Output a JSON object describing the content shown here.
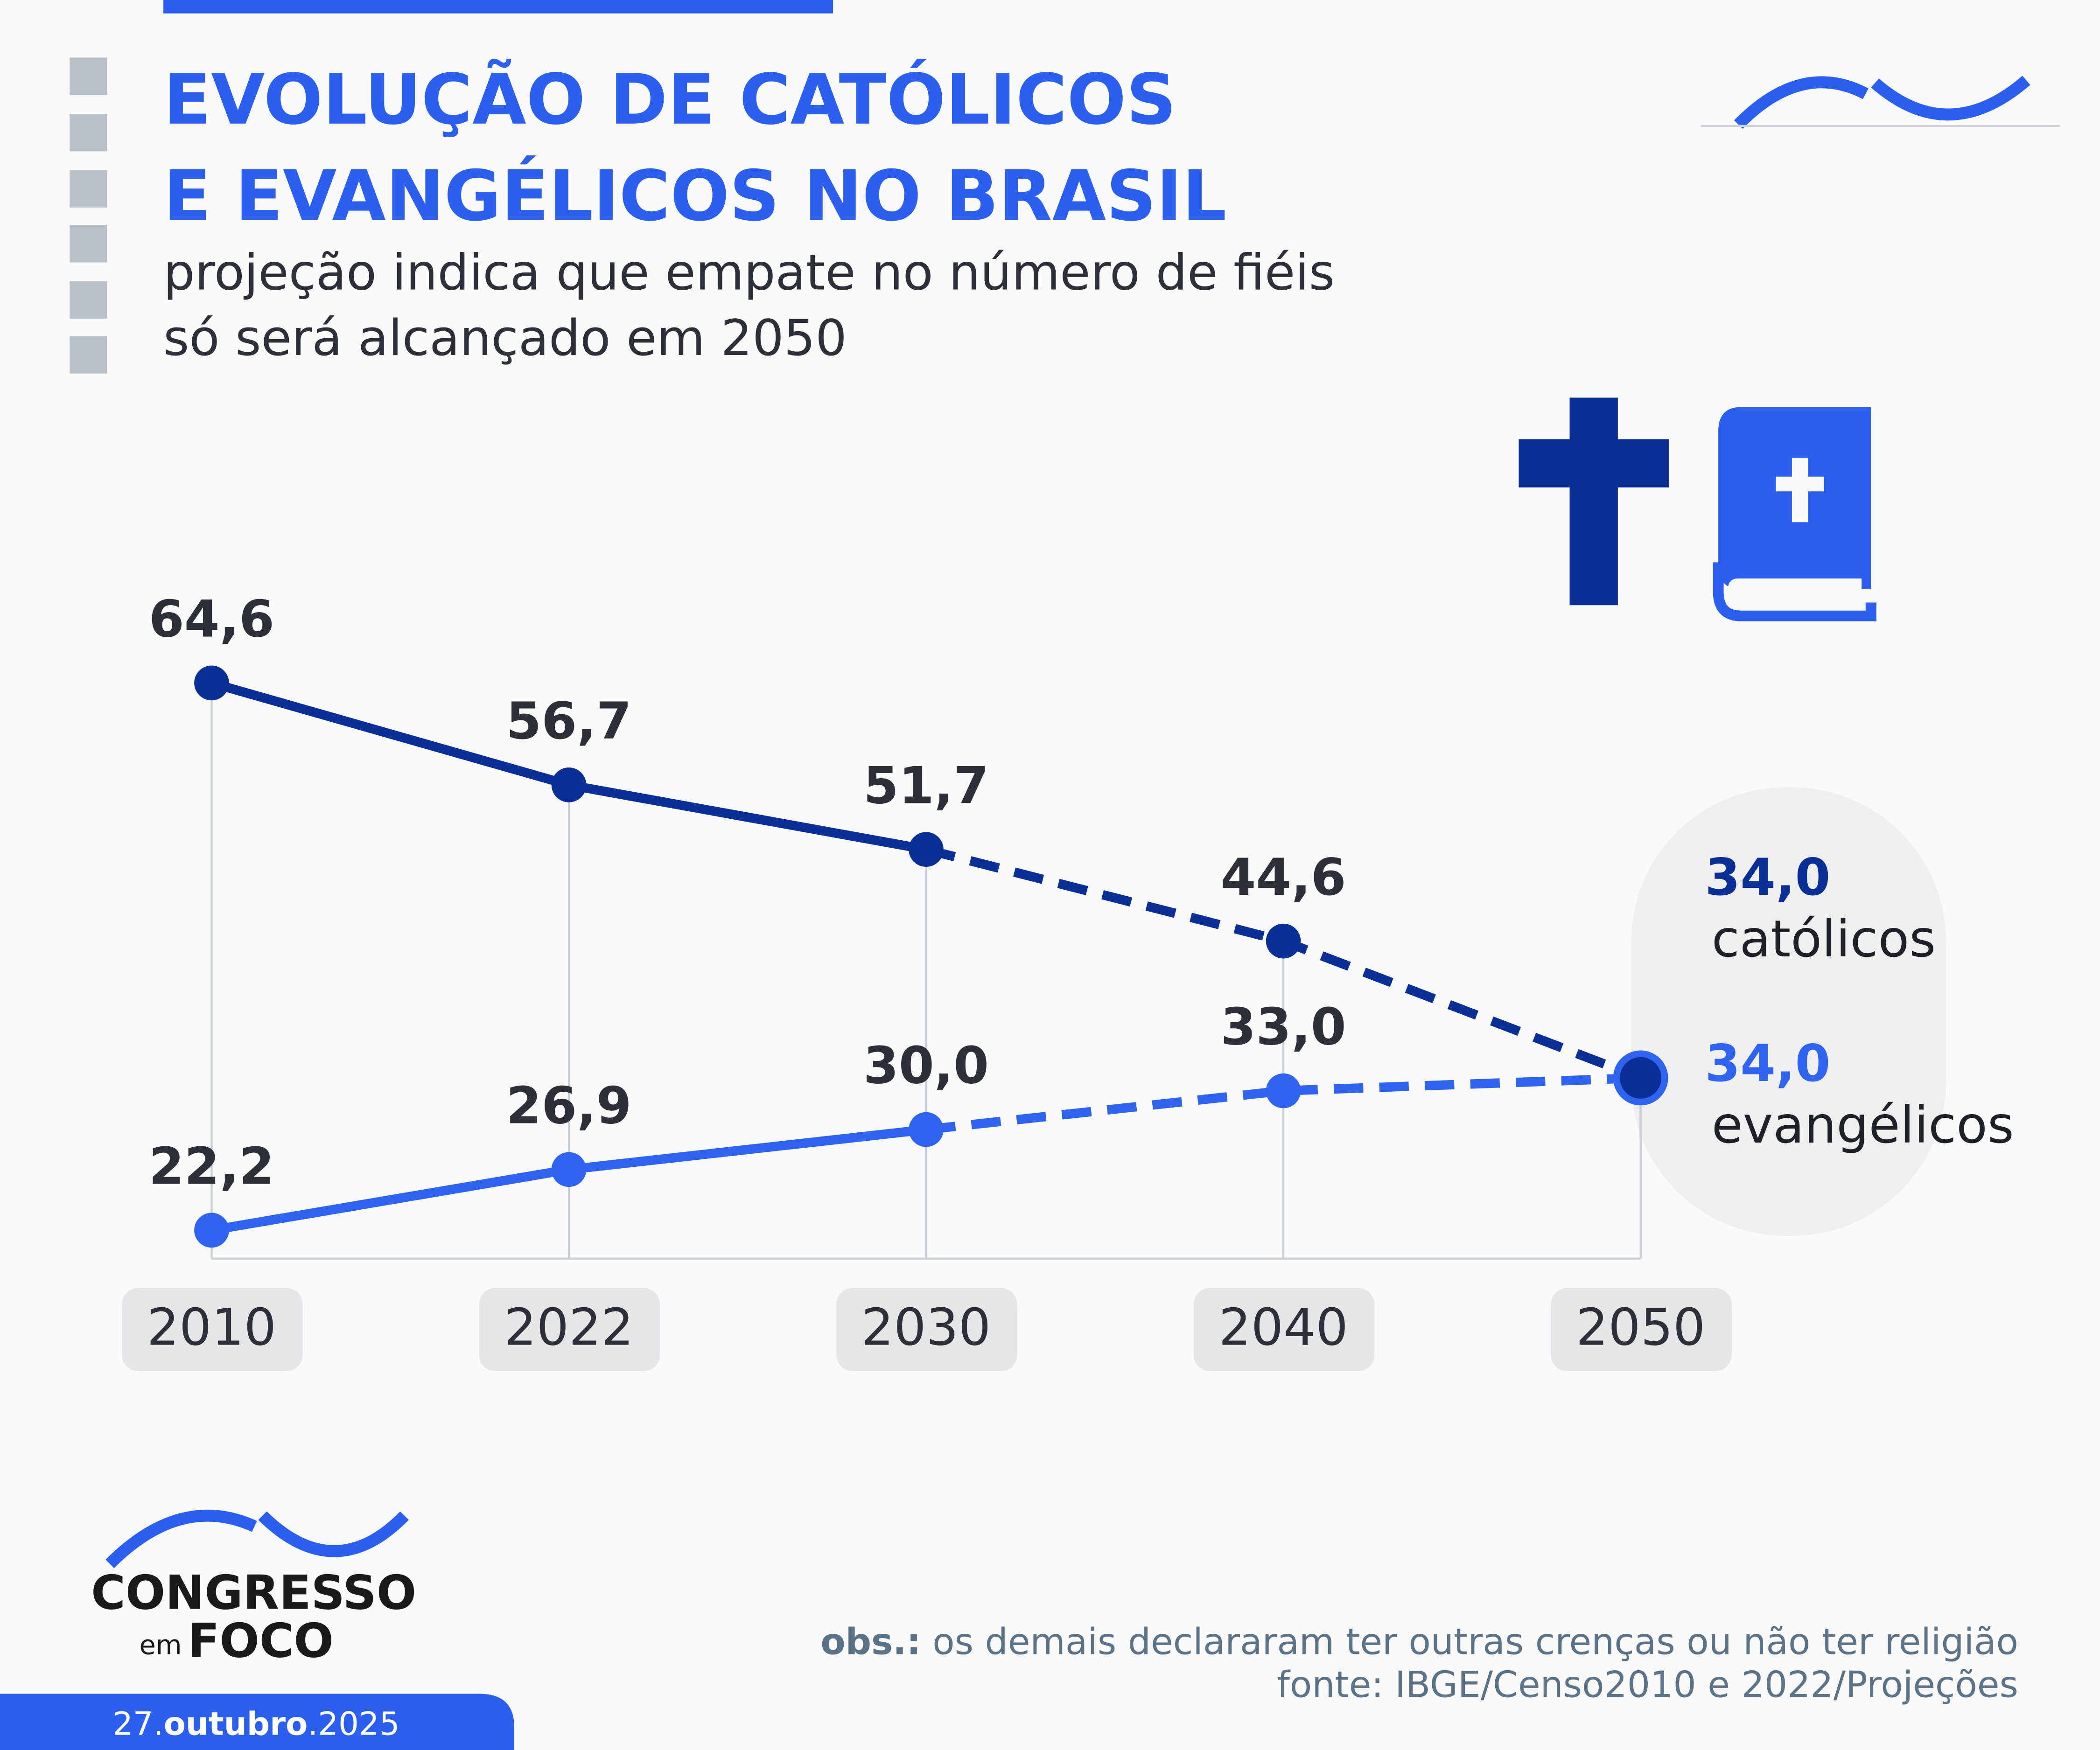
{
  "chart_data": {
    "type": "line",
    "title": [
      "EVOLUÇÃO DE CATÓLICOS",
      "E EVANGÉLICOS NO BRASIL"
    ],
    "subtitle": [
      "projeção indica que empate no número de fiéis",
      "só será alcançado em 2050"
    ],
    "categories": [
      "2010",
      "2022",
      "2030",
      "2040",
      "2050"
    ],
    "dash_from": "2030",
    "series": [
      {
        "name": "católicos",
        "color": "#0a2f96",
        "values": [
          64.6,
          56.7,
          51.7,
          44.6,
          34.0
        ],
        "value_labels": [
          "64,6",
          "56,7",
          "51,7",
          "44,6",
          "34,0"
        ]
      },
      {
        "name": "evangélicos",
        "color": "#2e64f0",
        "values": [
          22.2,
          26.9,
          30.0,
          33.0,
          34.0
        ],
        "value_labels": [
          "22,2",
          "26,9",
          "30,0",
          "33,0",
          "34,0"
        ]
      }
    ],
    "ylim": [
      20,
      70
    ]
  },
  "footer": {
    "obs_label": "obs.:",
    "obs_text": " os demais declararam ter outras crenças ou não ter religião",
    "source": "fonte: IBGE/Censo2010 e 2022/Projeções",
    "brand": [
      "CONGRESSO",
      "em",
      "FOCO"
    ],
    "date": [
      "27.",
      "outubro",
      ".2025"
    ]
  }
}
